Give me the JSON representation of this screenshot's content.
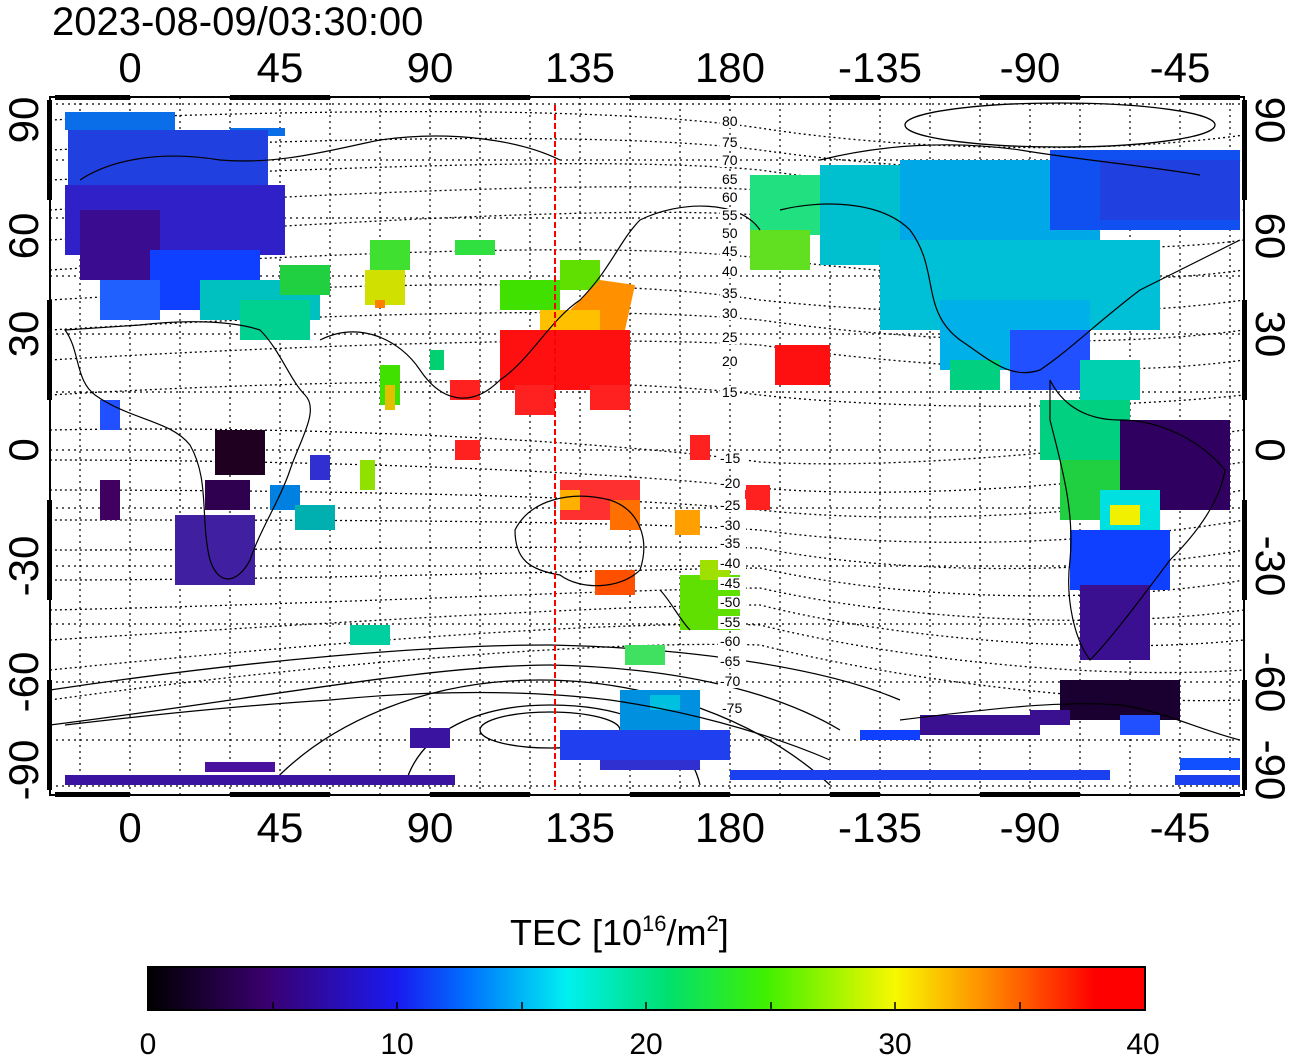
{
  "timestamp": "2023-08-09/03:30:00",
  "map": {
    "lon_ticks": [
      "0",
      "45",
      "90",
      "135",
      "180",
      "-135",
      "-90",
      "-45"
    ],
    "lat_ticks": [
      "90",
      "60",
      "30",
      "0",
      "-30",
      "-60",
      "-90"
    ],
    "contour_labels": [
      "80",
      "75",
      "70",
      "65",
      "60",
      "55",
      "50",
      "45",
      "40",
      "35",
      "30",
      "25",
      "20",
      "15",
      "-15",
      "-20",
      "-25",
      "-30",
      "-35",
      "-40",
      "-45",
      "-50",
      "-55",
      "-60",
      "-65",
      "-70",
      "-75"
    ],
    "subsolar_line_color": "#ff0000"
  },
  "colorbar": {
    "title_prefix": "TEC  [10",
    "title_sup1": "16",
    "title_mid": "/m",
    "title_sup2": "2",
    "title_suffix": "]",
    "tick_labels": [
      "0",
      "10",
      "20",
      "30",
      "40"
    ],
    "min": 0,
    "max": 40,
    "colors": [
      "#000000",
      "#3a0070",
      "#1e1ee0",
      "#0070ff",
      "#00e8f0",
      "#00e070",
      "#40f000",
      "#f0f000",
      "#ff8000",
      "#ff0000"
    ]
  }
}
